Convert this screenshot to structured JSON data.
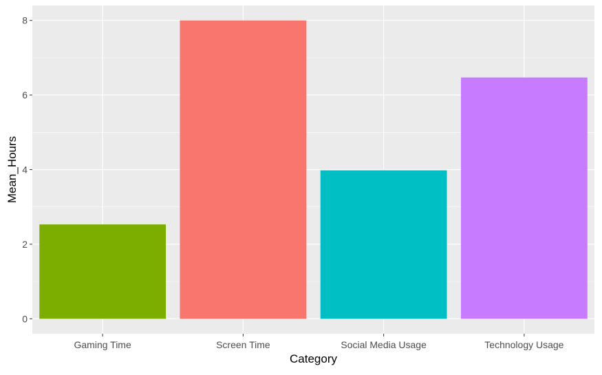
{
  "chart_data": {
    "type": "bar",
    "title": "",
    "xlabel": "Category",
    "ylabel": "Mean_Hours",
    "categories": [
      "Gaming Time",
      "Screen Time",
      "Social Media Usage",
      "Technology Usage"
    ],
    "values": [
      2.53,
      8.0,
      3.98,
      6.47
    ],
    "colors": [
      "#7CAE00",
      "#F8766D",
      "#00BFC4",
      "#C77CFF"
    ],
    "y_ticks": [
      0,
      2,
      4,
      6,
      8
    ],
    "y_tick_labels": [
      "0",
      "2",
      "4",
      "6",
      "8"
    ],
    "ylim": [
      -0.4,
      8.4
    ],
    "grid": true,
    "legend": "none",
    "panel_background": "#EBEBEB",
    "grid_color": "#FFFFFF"
  }
}
